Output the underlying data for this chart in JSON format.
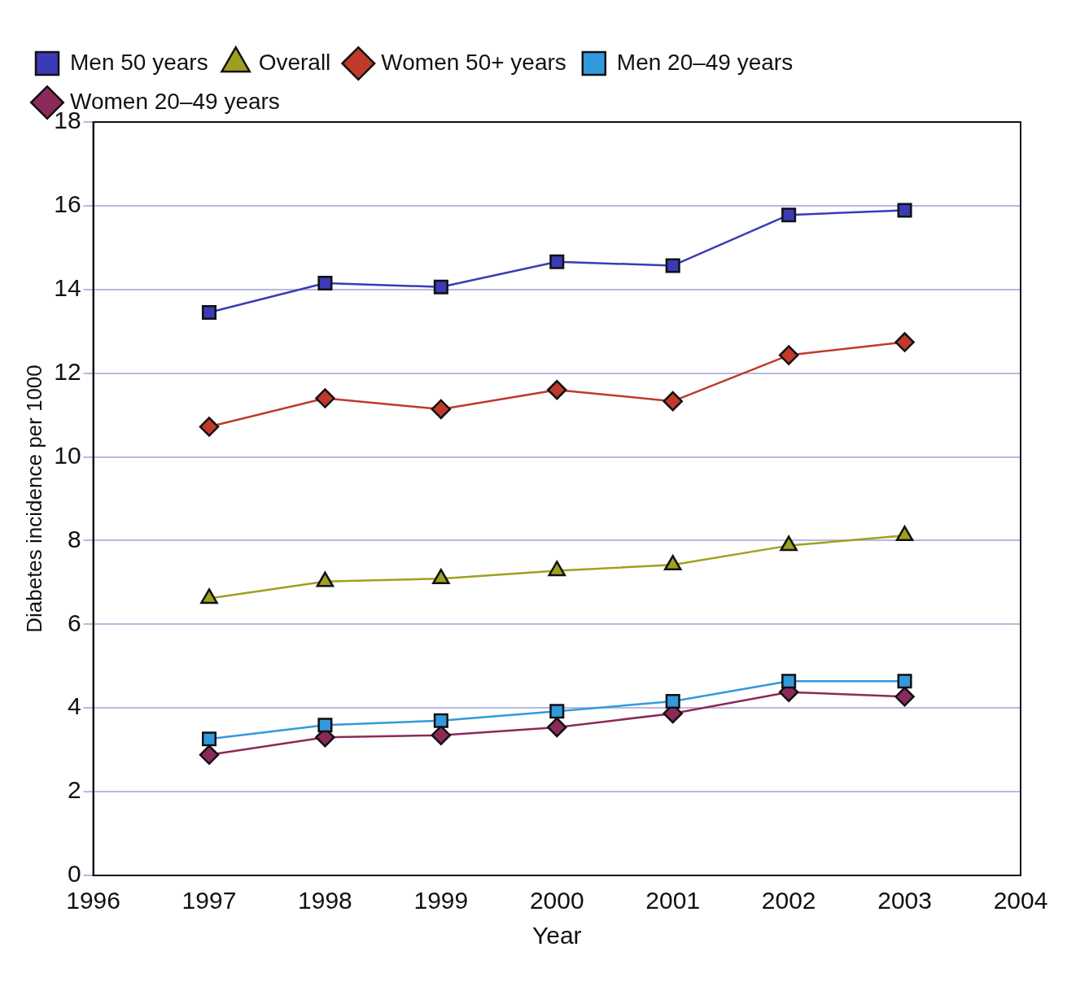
{
  "chart_data": {
    "type": "line",
    "xlabel": "Year",
    "ylabel": "Diabetes incidence per 1000",
    "x": [
      1997,
      1998,
      1999,
      2000,
      2001,
      2002,
      2003
    ],
    "series": [
      {
        "name": "Men 50 years",
        "color": "#3b3bb5",
        "marker": "square",
        "values": [
          13.45,
          14.15,
          14.06,
          14.66,
          14.57,
          15.78,
          15.89
        ]
      },
      {
        "name": "Overall",
        "color": "#a0a020",
        "marker": "triangle",
        "values": [
          6.62,
          7.02,
          7.09,
          7.28,
          7.42,
          7.88,
          8.12
        ]
      },
      {
        "name": "Women 50+ years",
        "color": "#c0392b",
        "marker": "diamond",
        "values": [
          10.72,
          11.4,
          11.14,
          11.6,
          11.33,
          12.43,
          12.74
        ]
      },
      {
        "name": "Men 20–49 years",
        "color": "#3399dd",
        "marker": "square",
        "values": [
          3.26,
          3.59,
          3.7,
          3.92,
          4.16,
          4.64,
          4.64
        ]
      },
      {
        "name": "Women 20–49 years",
        "color": "#8b2a5a",
        "marker": "diamond",
        "values": [
          2.88,
          3.3,
          3.35,
          3.54,
          3.87,
          4.38,
          4.27
        ]
      }
    ],
    "xlim": [
      1996,
      2004
    ],
    "xticks": [
      1996,
      1997,
      1998,
      1999,
      2000,
      2001,
      2002,
      2003,
      2004
    ],
    "ylim": [
      0,
      18
    ],
    "yticks": [
      0,
      2,
      4,
      6,
      8,
      10,
      12,
      14,
      16,
      18
    ],
    "grid": "y",
    "legend": "top left",
    "line_style": "solid"
  }
}
